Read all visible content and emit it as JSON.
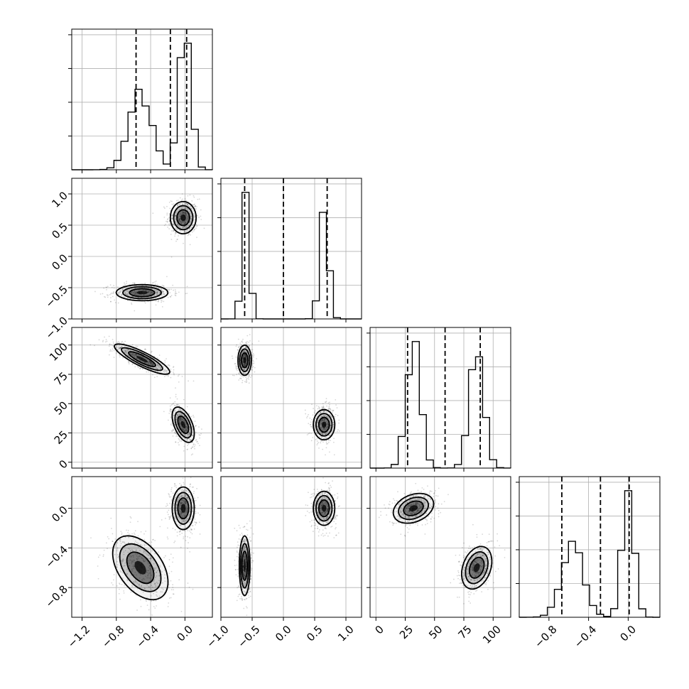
{
  "chart_data": {
    "type": "corner",
    "grid": true,
    "parameters": [
      {
        "range": [
          -1.32,
          0.32
        ],
        "ticks": [
          -1.2,
          -0.8,
          -0.4,
          0.0
        ],
        "tick_labels": [
          "−1.2",
          "−0.8",
          "−0.4",
          "0.0"
        ],
        "quantiles": [
          -0.57,
          -0.17,
          0.02
        ],
        "modes": [
          {
            "mean": -0.52,
            "sd": 0.13,
            "weight": 0.5
          },
          {
            "mean": 0.0,
            "sd": 0.07,
            "weight": 0.5
          }
        ]
      },
      {
        "range": [
          -1.0,
          1.25
        ],
        "ticks": [
          -1.0,
          -0.5,
          0.0,
          0.5,
          1.0
        ],
        "tick_labels": [
          "−1.0",
          "−0.5",
          "0.0",
          "0.5",
          "1.0"
        ],
        "quantiles": [
          -0.62,
          0.0,
          0.7
        ],
        "modes": [
          {
            "mean": -0.6,
            "sd": 0.06,
            "weight": 0.5
          },
          {
            "mean": 0.65,
            "sd": 0.07,
            "weight": 0.5
          }
        ]
      },
      {
        "range": [
          -5,
          115
        ],
        "ticks": [
          0,
          25,
          50,
          75,
          100
        ],
        "tick_labels": [
          "0",
          "25",
          "50",
          "75",
          "100"
        ],
        "quantiles": [
          27,
          59,
          89
        ],
        "modes": [
          {
            "mean": 32,
            "sd": 6,
            "weight": 0.5
          },
          {
            "mean": 86,
            "sd": 6,
            "weight": 0.5
          }
        ]
      },
      {
        "range": [
          -1.1,
          0.32
        ],
        "ticks": [
          -0.8,
          -0.4,
          0.0
        ],
        "tick_labels": [
          "−0.8",
          "−0.4",
          "0.0"
        ],
        "quantiles": [
          -0.67,
          -0.28,
          0.01
        ],
        "modes": [
          {
            "mean": -0.56,
            "sd": 0.11,
            "weight": 0.5
          },
          {
            "mean": 0.0,
            "sd": 0.06,
            "weight": 0.5
          }
        ]
      }
    ],
    "clusters": {
      "1_0": [
        {
          "mean": [
            -0.02,
            0.62
          ],
          "sd": [
            0.07,
            0.12
          ]
        },
        {
          "mean": [
            -0.5,
            -0.58
          ],
          "sd": [
            0.14,
            0.06
          ]
        }
      ],
      "2_0": [
        {
          "mean": [
            -0.5,
            88
          ],
          "sd": [
            0.15,
            6
          ],
          "corr": -0.85
        },
        {
          "mean": [
            -0.02,
            32
          ],
          "sd": [
            0.06,
            7
          ],
          "corr": -0.5
        }
      ],
      "3_0": [
        {
          "mean": [
            -0.02,
            0.0
          ],
          "sd": [
            0.06,
            0.1
          ]
        },
        {
          "mean": [
            -0.52,
            -0.6
          ],
          "sd": [
            0.15,
            0.15
          ],
          "corr": -0.45
        }
      ],
      "2_1": [
        {
          "mean": [
            -0.62,
            87
          ],
          "sd": [
            0.05,
            6
          ]
        },
        {
          "mean": [
            0.65,
            32
          ],
          "sd": [
            0.08,
            6
          ]
        }
      ],
      "3_1": [
        {
          "mean": [
            0.65,
            0.0
          ],
          "sd": [
            0.08,
            0.08
          ]
        },
        {
          "mean": [
            -0.62,
            -0.58
          ],
          "sd": [
            0.04,
            0.14
          ]
        }
      ],
      "3_2": [
        {
          "mean": [
            32,
            0.0
          ],
          "sd": [
            8,
            0.07
          ],
          "corr": 0.3
        },
        {
          "mean": [
            86,
            -0.6
          ],
          "sd": [
            6,
            0.1
          ],
          "corr": 0.3
        }
      ]
    }
  }
}
